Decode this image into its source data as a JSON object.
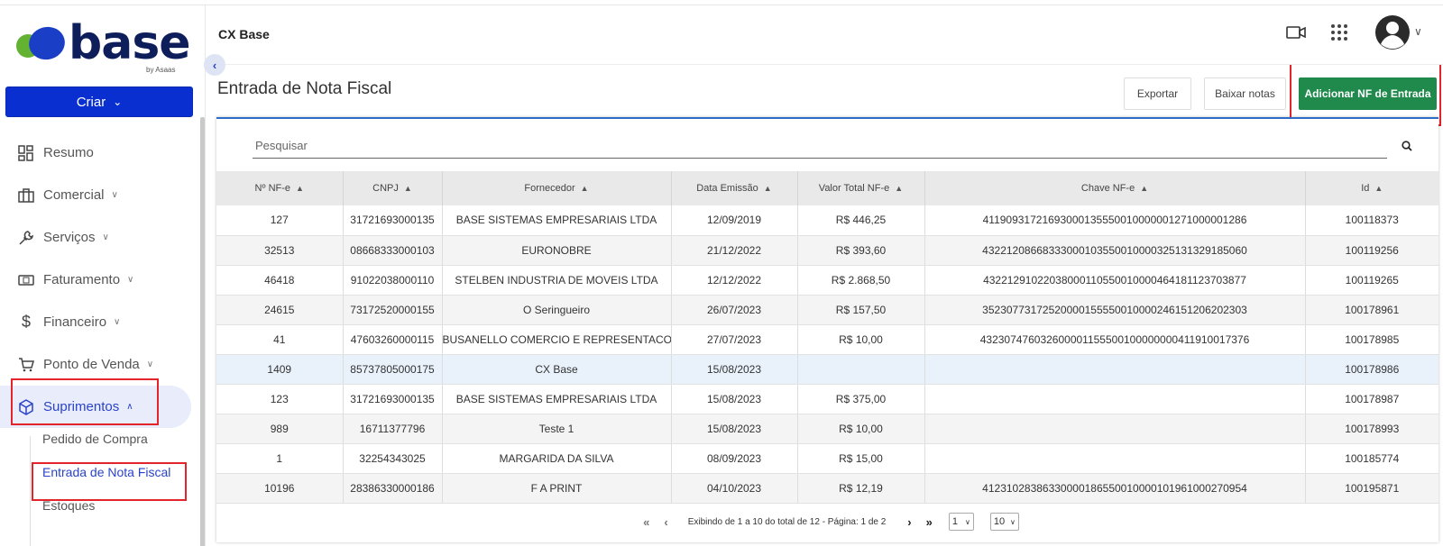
{
  "app": {
    "logo_text": "base",
    "logo_sub": "by Asaas",
    "header_title": "CX Base"
  },
  "colors": {
    "brand": "#0a2fd0",
    "primary_button": "#1f8a4c",
    "highlight": "#e3242b",
    "active_nav": "#2a43c8"
  },
  "sidebar": {
    "create_label": "Criar",
    "items": [
      {
        "label": "Resumo",
        "icon": "dashboard-icon"
      },
      {
        "label": "Comercial",
        "icon": "briefcase-icon"
      },
      {
        "label": "Serviços",
        "icon": "wrench-icon"
      },
      {
        "label": "Faturamento",
        "icon": "invoice-icon"
      },
      {
        "label": "Financeiro",
        "icon": "dollar-icon"
      },
      {
        "label": "Ponto de Venda",
        "icon": "cart-icon"
      },
      {
        "label": "Suprimentos",
        "icon": "box-icon"
      }
    ],
    "subitems": [
      {
        "label": "Pedido de Compra"
      },
      {
        "label": "Entrada de Nota Fiscal"
      },
      {
        "label": "Estoques"
      }
    ]
  },
  "header": {
    "icons": [
      "video-icon",
      "apps-grid-icon",
      "user-avatar-icon"
    ]
  },
  "page": {
    "title": "Entrada de Nota Fiscal",
    "buttons": {
      "export": "Exportar",
      "download": "Baixar notas",
      "add": "Adicionar NF de Entrada"
    },
    "search_placeholder": "Pesquisar"
  },
  "table": {
    "columns": [
      "Nº NF-e",
      "CNPJ",
      "Fornecedor",
      "Data Emissão",
      "Valor Total NF-e",
      "Chave NF-e",
      "Id"
    ],
    "rows": [
      [
        "127",
        "31721693000135",
        "BASE SISTEMAS EMPRESARIAIS LTDA",
        "12/09/2019",
        "R$ 446,25",
        "41190931721693000135550010000001271000001286",
        "100118373"
      ],
      [
        "32513",
        "08668333000103",
        "EURONOBRE",
        "21/12/2022",
        "R$ 393,60",
        "43221208668333000103550010000325131329185060",
        "100119256"
      ],
      [
        "46418",
        "91022038000110",
        "STELBEN INDUSTRIA DE MOVEIS LTDA",
        "12/12/2022",
        "R$ 2.868,50",
        "43221291022038000110550010000464181123703877",
        "100119265"
      ],
      [
        "24615",
        "73172520000155",
        "O Seringueiro",
        "26/07/2023",
        "R$ 157,50",
        "35230773172520000155550010000246151206202303",
        "100178961"
      ],
      [
        "41",
        "47603260000115",
        "BUSANELLO COMERCIO E REPRESENTACOES",
        "27/07/2023",
        "R$ 10,00",
        "43230747603260000115550010000000041191001737​6",
        "100178985"
      ],
      [
        "1409",
        "85737805000175",
        "CX Base",
        "15/08/2023",
        "",
        "",
        "100178986"
      ],
      [
        "123",
        "31721693000135",
        "BASE SISTEMAS EMPRESARIAIS LTDA",
        "15/08/2023",
        "R$ 375,00",
        "",
        "100178987"
      ],
      [
        "989",
        "16711377796",
        "Teste 1",
        "15/08/2023",
        "R$ 10,00",
        "",
        "100178993"
      ],
      [
        "1",
        "32254343025",
        "MARGARIDA DA SILVA",
        "08/09/2023",
        "R$ 15,00",
        "",
        "100185774"
      ],
      [
        "10196",
        "28386330000186",
        "F A PRINT",
        "04/10/2023",
        "R$ 12,19",
        "41231028386330000186550010000101961000270954",
        "100195871"
      ]
    ]
  },
  "pagination": {
    "summary": "Exibindo de 1 a 10 do total de 12 - Página: 1 de 2",
    "page_select": "1",
    "page_size": "10"
  }
}
